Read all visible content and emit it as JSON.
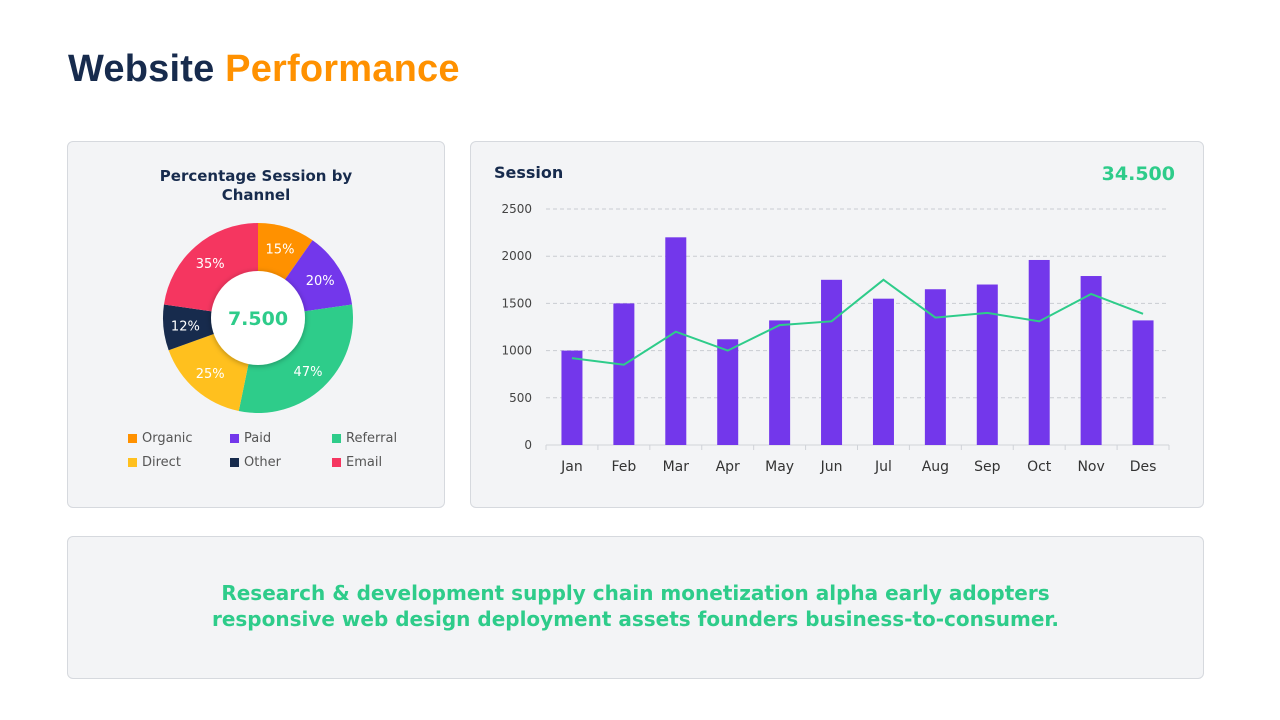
{
  "title": {
    "part1": "Website",
    "part2": "Performance"
  },
  "colors": {
    "navy": "#172b4d",
    "orange": "#ff9100",
    "green": "#2ecc8a",
    "purple": "#7337eb"
  },
  "donut": {
    "title": "Percentage Session by Channel",
    "center_value": "7.500",
    "chart_data": {
      "type": "pie",
      "variant": "donut",
      "categories": [
        "Organic",
        "Paid",
        "Referral",
        "Direct",
        "Other",
        "Email"
      ],
      "values": [
        15,
        20,
        47,
        25,
        12,
        35
      ],
      "labels": [
        "15%",
        "20%",
        "47%",
        "25%",
        "12%",
        "35%"
      ],
      "slice_order": [
        "Organic",
        "Paid",
        "Referral",
        "Direct",
        "Other",
        "Email"
      ],
      "colors": [
        "#ff9100",
        "#7337eb",
        "#2ecc8a",
        "#ffc01e",
        "#172b4d",
        "#f53660"
      ],
      "legend": "bottom"
    }
  },
  "session": {
    "title": "Session",
    "total": "34.500",
    "chart_data": {
      "type": "bar",
      "categories": [
        "Jan",
        "Feb",
        "Mar",
        "Apr",
        "May",
        "Jun",
        "Jul",
        "Aug",
        "Sep",
        "Oct",
        "Nov",
        "Des"
      ],
      "series": [
        {
          "type": "bar",
          "color": "#7337eb",
          "values": [
            1000,
            1500,
            2200,
            1120,
            1320,
            1750,
            1550,
            1650,
            1700,
            1960,
            1790,
            1320
          ]
        },
        {
          "type": "line",
          "color": "#2ecc8a",
          "values": [
            920,
            850,
            1200,
            1000,
            1270,
            1310,
            1750,
            1350,
            1400,
            1310,
            1600,
            1390
          ]
        }
      ],
      "ylim": [
        0,
        2500
      ],
      "yticks": [
        0,
        500,
        1000,
        1500,
        2000,
        2500
      ],
      "grid": true,
      "grid_style": "dashed"
    }
  },
  "footer": {
    "line1": "Research & development supply chain monetization alpha early adopters",
    "line2": "responsive web design deployment assets founders business-to-consumer."
  }
}
